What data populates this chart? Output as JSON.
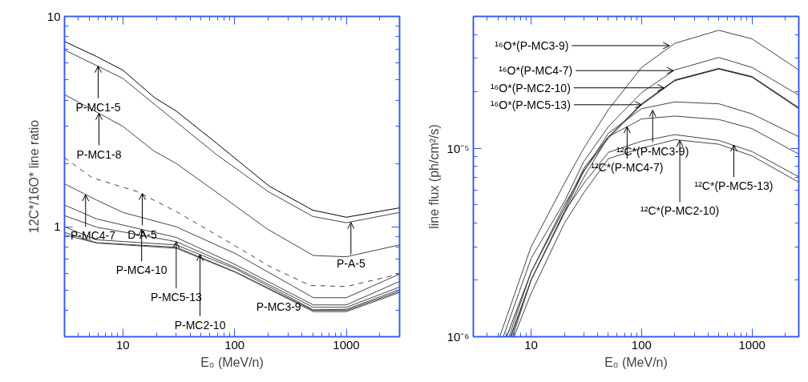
{
  "chart_data": [
    {
      "type": "line",
      "xlabel": "E₀ (MeV/n)",
      "ylabel": "12C*/16O* line ratio",
      "log": "xy",
      "grid": false,
      "xlim": [
        3,
        3000
      ],
      "ylim": [
        0.3,
        10
      ],
      "xticks": [
        {
          "value": 4,
          "label": null
        },
        {
          "value": 5,
          "label": null
        },
        {
          "value": 6,
          "label": null
        },
        {
          "value": 7,
          "label": null
        },
        {
          "value": 8,
          "label": null
        },
        {
          "value": 9,
          "label": null
        },
        10,
        {
          "value": 20,
          "label": null
        },
        {
          "value": 30,
          "label": null
        },
        {
          "value": 40,
          "label": null
        },
        {
          "value": 50,
          "label": null
        },
        {
          "value": 60,
          "label": null
        },
        {
          "value": 70,
          "label": null
        },
        {
          "value": 80,
          "label": null
        },
        {
          "value": 90,
          "label": null
        },
        100,
        {
          "value": 200,
          "label": null
        },
        {
          "value": 300,
          "label": null
        },
        {
          "value": 400,
          "label": null
        },
        {
          "value": 500,
          "label": null
        },
        {
          "value": 600,
          "label": null
        },
        {
          "value": 700,
          "label": null
        },
        {
          "value": 800,
          "label": null
        },
        {
          "value": 900,
          "label": null
        },
        1000,
        {
          "value": 2000,
          "label": null
        }
      ],
      "yticks": [
        {
          "value": 0.4,
          "label": null
        },
        {
          "value": 0.5,
          "label": null
        },
        {
          "value": 0.6,
          "label": null
        },
        {
          "value": 0.7,
          "label": null
        },
        {
          "value": 0.8,
          "label": null
        },
        {
          "value": 0.9,
          "label": null
        },
        1,
        {
          "value": 2,
          "label": null
        },
        {
          "value": 3,
          "label": null
        },
        {
          "value": 4,
          "label": null
        },
        {
          "value": 5,
          "label": null
        },
        {
          "value": 6,
          "label": null
        },
        {
          "value": 7,
          "label": null
        },
        {
          "value": 8,
          "label": null
        },
        {
          "value": 9,
          "label": null
        },
        10
      ],
      "series": [
        {
          "color": "#000000",
          "x": [
            3,
            5.8,
            10,
            19.3,
            30,
            70,
            204,
            500,
            1000,
            3000
          ],
          "values": [
            7.6,
            6.45,
            5.55,
            4.1,
            3.55,
            2.48,
            1.56,
            1.2,
            1.11,
            1.23
          ]
        },
        {
          "color": "#444444",
          "x": [
            3,
            10,
            20,
            70,
            200,
            500,
            1000,
            3000
          ],
          "values": [
            6.93,
            5.07,
            3.75,
            2.19,
            1.47,
            1.12,
            1.045,
            1.17
          ]
        },
        {
          "color": "#444444",
          "x": [
            3,
            10,
            19,
            30,
            70,
            197,
            507,
            1000,
            3000
          ],
          "values": [
            4.25,
            3.0,
            2.29,
            2.0,
            1.45,
            0.974,
            0.73,
            0.72,
            0.82
          ]
        },
        {
          "color": "#444444",
          "line_style": "dashed",
          "x": [
            3,
            5.3,
            13.4,
            31,
            92,
            215,
            475,
            1000,
            3000
          ],
          "values": [
            2.13,
            1.71,
            1.47,
            1.17,
            0.836,
            0.64,
            0.526,
            0.52,
            0.596
          ]
        },
        {
          "color": "#444444",
          "x": [
            3,
            5.8,
            10,
            30,
            102,
            507,
            1000,
            3000
          ],
          "values": [
            1.6,
            1.34,
            1.17,
            1.0,
            0.745,
            0.46,
            0.46,
            0.596
          ]
        },
        {
          "color": "#444444",
          "x": [
            3,
            5.8,
            30,
            102,
            507,
            1000,
            3000
          ],
          "values": [
            1.27,
            1.09,
            0.89,
            0.66,
            0.425,
            0.425,
            0.55
          ]
        },
        {
          "color": "#444444",
          "x": [
            3,
            5.8,
            30,
            102,
            507,
            1000,
            3000
          ],
          "values": [
            1.13,
            0.996,
            0.85,
            0.64,
            0.414,
            0.414,
            0.517
          ]
        },
        {
          "color": "#444444",
          "x": [
            3,
            5.8,
            30,
            102,
            507,
            1000,
            3000
          ],
          "values": [
            1.0,
            0.867,
            0.82,
            0.63,
            0.403,
            0.405,
            0.503
          ]
        },
        {
          "color": "#444444",
          "x": [
            3,
            5.8,
            30,
            102,
            507,
            1000,
            3000
          ],
          "values": [
            0.94,
            0.84,
            0.8,
            0.61,
            0.4,
            0.4,
            0.494
          ]
        },
        {
          "color": "#444444",
          "x": [
            3,
            5.8,
            30,
            102,
            507,
            1000,
            3000
          ],
          "values": [
            0.915,
            0.837,
            0.79,
            0.607,
            0.395,
            0.395,
            0.487
          ]
        }
      ],
      "annotations": [
        {
          "text": "P-MC1-5",
          "x": 6.0,
          "y": 5.8
        },
        {
          "text": "P-MC1-8",
          "x": 6.1,
          "y": 3.46
        },
        {
          "text": "D-A-5",
          "x": 14.9,
          "y": 1.44
        },
        {
          "text": "P-A-5",
          "x": 1100,
          "y": 1.05
        },
        {
          "text": "P-MC4-7",
          "x": 4.63,
          "y": 1.42
        },
        {
          "text": "P-MC4-10",
          "x": 14.7,
          "y": 0.972
        },
        {
          "text": "P-MC5-13",
          "x": 30,
          "y": 0.85
        },
        {
          "text": "P-MC2-10",
          "x": 49,
          "y": 0.738
        },
        {
          "text": "P-MC3-9",
          "x": 248,
          "y": 0.478
        }
      ]
    },
    {
      "type": "line",
      "xlabel": "E₀ (MeV/n)",
      "ylabel": "line flux (ph/cm²/s)",
      "log": "xy",
      "grid": false,
      "xlim": [
        3,
        2650
      ],
      "ylim": [
        1e-06,
        5e-05
      ],
      "xticks": [
        {
          "value": 4,
          "label": null
        },
        {
          "value": 5,
          "label": null
        },
        {
          "value": 6,
          "label": null
        },
        {
          "value": 7,
          "label": null
        },
        {
          "value": 8,
          "label": null
        },
        {
          "value": 9,
          "label": null
        },
        10,
        {
          "value": 20,
          "label": null
        },
        {
          "value": 30,
          "label": null
        },
        {
          "value": 40,
          "label": null
        },
        {
          "value": 50,
          "label": null
        },
        {
          "value": 60,
          "label": null
        },
        {
          "value": 70,
          "label": null
        },
        {
          "value": 80,
          "label": null
        },
        {
          "value": 90,
          "label": null
        },
        100,
        {
          "value": 200,
          "label": null
        },
        {
          "value": 300,
          "label": null
        },
        {
          "value": 400,
          "label": null
        },
        {
          "value": 500,
          "label": null
        },
        {
          "value": 600,
          "label": null
        },
        {
          "value": 700,
          "label": null
        },
        {
          "value": 800,
          "label": null
        },
        {
          "value": 900,
          "label": null
        },
        1000,
        {
          "value": 2000,
          "label": null
        }
      ],
      "yticks": [
        {
          "value": 1e-06,
          "label": "10⁻⁶"
        },
        {
          "value": 2e-06,
          "label": null
        },
        {
          "value": 3e-06,
          "label": null
        },
        {
          "value": 4e-06,
          "label": null
        },
        {
          "value": 5e-06,
          "label": null
        },
        {
          "value": 6e-06,
          "label": null
        },
        {
          "value": 7e-06,
          "label": null
        },
        {
          "value": 8e-06,
          "label": null
        },
        {
          "value": 9e-06,
          "label": null
        },
        {
          "value": 1e-05,
          "label": "10⁻⁵"
        },
        {
          "value": 2e-05,
          "label": null
        },
        {
          "value": 3e-05,
          "label": null
        },
        {
          "value": 4e-05,
          "label": null
        }
      ],
      "series": [
        {
          "color": "#444444",
          "x": [
            5.2,
            10,
            20,
            30,
            50,
            100,
            200,
            500,
            1000,
            2650
          ],
          "values": [
            1e-06,
            3e-06,
            6.5e-06,
            1e-05,
            1.6e-05,
            2.68e-05,
            3.6e-05,
            4.22e-05,
            3.8e-05,
            2.6e-05
          ]
        },
        {
          "color": "#444444",
          "x": [
            5.6,
            10,
            20,
            30,
            50,
            100,
            200,
            500,
            1000,
            2650
          ],
          "values": [
            1e-06,
            2.6e-06,
            5.2e-06,
            8.5e-06,
            1.3e-05,
            1.97e-05,
            2.6e-05,
            3.03e-05,
            2.68e-05,
            1.91e-05
          ]
        },
        {
          "color": "#222222",
          "x": [
            6,
            10,
            20,
            30,
            50,
            100,
            200,
            500,
            1000,
            2650
          ],
          "values": [
            1e-06,
            2.2e-06,
            4.8e-06,
            7.8e-06,
            1.15e-05,
            1.72e-05,
            2.3e-05,
            2.65e-05,
            2.4e-05,
            1.64e-05
          ]
        },
        {
          "color": "#222222",
          "x": [
            6.5,
            10,
            20,
            30,
            50,
            100,
            200,
            500,
            1000,
            2650
          ],
          "values": [
            1e-06,
            2e-06,
            4.6e-06,
            7.6e-06,
            1.13e-05,
            1.7e-05,
            2.28e-05,
            2.63e-05,
            2.38e-05,
            1.62e-05
          ]
        },
        {
          "color": "#444444",
          "x": [
            6.3,
            10,
            20,
            30,
            50,
            100,
            200,
            500,
            1000,
            2650
          ],
          "values": [
            1e-06,
            2.2e-06,
            5e-06,
            7.5e-06,
            1.2e-05,
            1.62e-05,
            1.76e-05,
            1.72e-05,
            1.52e-05,
            1.15e-05
          ]
        },
        {
          "color": "#444444",
          "x": [
            6.6,
            10,
            20,
            30,
            50,
            100,
            200,
            500,
            1000,
            2650
          ],
          "values": [
            1e-06,
            2e-06,
            4.5e-06,
            7e-06,
            1.15e-05,
            1.43e-05,
            1.48e-05,
            1.42e-05,
            1.27e-05,
            9.3e-06
          ]
        },
        {
          "color": "#444444",
          "x": [
            6.8,
            10,
            20,
            30,
            50,
            100,
            200,
            500,
            1000,
            2650
          ],
          "values": [
            1e-06,
            2e-06,
            4.6e-06,
            6.5e-06,
            9.5e-06,
            1.09e-05,
            1.18e-05,
            1.1e-05,
            9.6e-06,
            7.05e-06
          ]
        },
        {
          "color": "#444444",
          "x": [
            7.0,
            10,
            20,
            30,
            50,
            100,
            200,
            500,
            1000,
            2650
          ],
          "values": [
            1e-06,
            1.7e-06,
            4e-06,
            5.8e-06,
            8.8e-06,
            1e-05,
            1.11e-05,
            1.05e-05,
            9.1e-06,
            6.6e-06
          ]
        }
      ],
      "annotations": [
        {
          "text": "¹⁶O*(P-MC3-9)",
          "x": 179,
          "y": 3.5e-05
        },
        {
          "text": "¹⁶O*(P-MC4-7)",
          "x": 194,
          "y": 2.58e-05
        },
        {
          "text": "¹⁶O*(P-MC2-10)",
          "x": 160,
          "y": 2.09e-05
        },
        {
          "text": "¹⁶O*(P-MC5-13)",
          "x": 100,
          "y": 1.7e-05
        },
        {
          "text": "¹²C*(P-MC5-13)",
          "x": 685,
          "y": 1.04e-05
        },
        {
          "text": "¹²C*(P-MC2-10)",
          "x": 222,
          "y": 1.1e-05
        },
        {
          "text": "¹²C*(P-MC3-9)",
          "x": 126,
          "y": 1.59e-05
        },
        {
          "text": "¹²C*(P-MC4-7)",
          "x": 74,
          "y": 1.3e-05
        }
      ]
    }
  ]
}
